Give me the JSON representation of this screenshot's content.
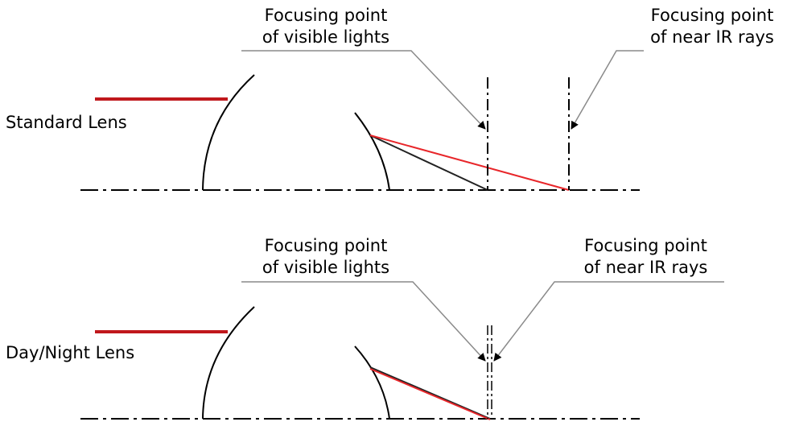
{
  "panels": {
    "standard": {
      "lens_label": "Standard Lens",
      "callout_visible": {
        "line1": "Focusing point",
        "line2": "of visible lights"
      },
      "callout_ir": {
        "line1": "Focusing point",
        "line2": "of near IR rays"
      }
    },
    "day_night": {
      "lens_label": "Day/Night Lens",
      "callout_visible": {
        "line1": "Focusing point",
        "line2": "of visible lights"
      },
      "callout_ir": {
        "line1": "Focusing point",
        "line2": "of near IR rays"
      }
    }
  },
  "colors": {
    "ir_ray": "#e8262a",
    "incoming_ray": "#c0181c",
    "visible_ray": "#222222",
    "lens": "#000000",
    "axis": "#000000",
    "leader": "#8a8a8a"
  }
}
